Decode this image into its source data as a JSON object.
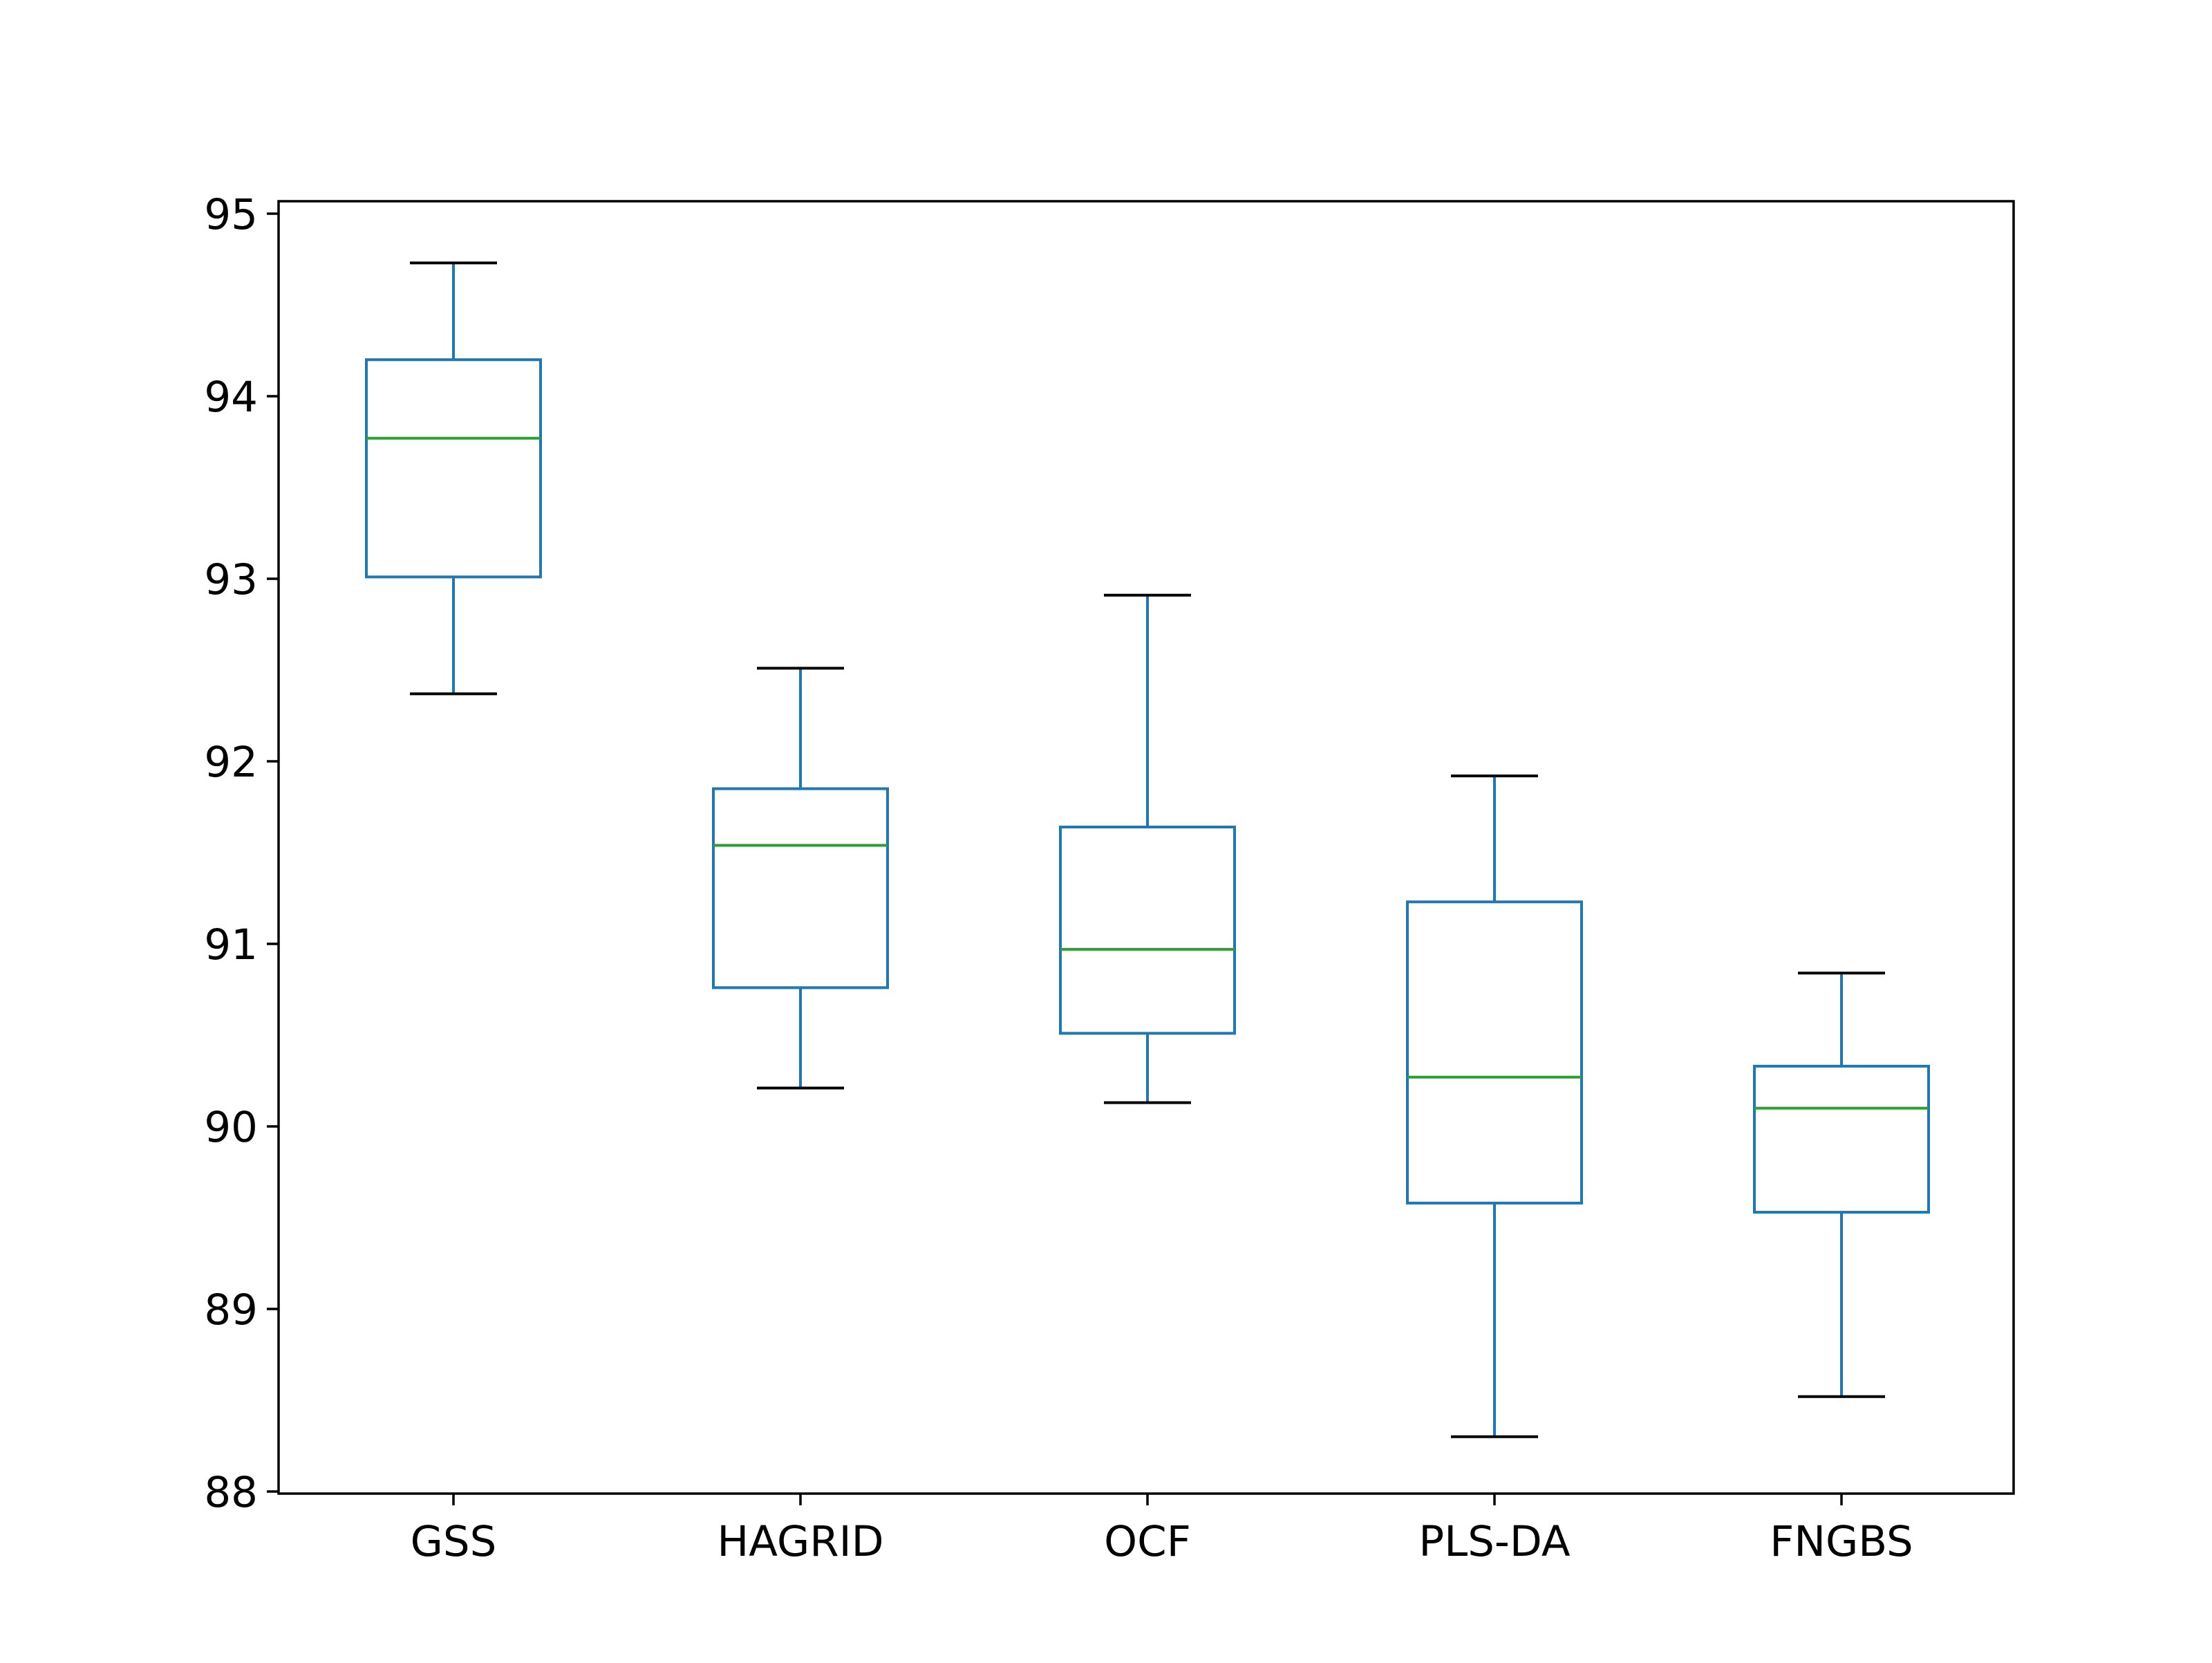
{
  "chart_data": {
    "type": "box",
    "title": "",
    "xlabel": "",
    "ylabel": "",
    "ylim": [
      88,
      95
    ],
    "yticks": [
      88,
      89,
      90,
      91,
      92,
      93,
      94,
      95
    ],
    "grid": false,
    "categories": [
      "GSS",
      "HAGRID",
      "OCF",
      "PLS-DA",
      "FNGBS"
    ],
    "boxes": [
      {
        "label": "GSS",
        "whisker_low": 92.37,
        "q1": 93.01,
        "median": 93.77,
        "q3": 94.2,
        "whisker_high": 94.73
      },
      {
        "label": "HAGRID",
        "whisker_low": 90.21,
        "q1": 90.76,
        "median": 91.54,
        "q3": 91.85,
        "whisker_high": 92.51
      },
      {
        "label": "OCF",
        "whisker_low": 90.13,
        "q1": 90.51,
        "median": 90.97,
        "q3": 91.64,
        "whisker_high": 92.91
      },
      {
        "label": "PLS-DA",
        "whisker_low": 88.3,
        "q1": 89.58,
        "median": 90.27,
        "q3": 91.23,
        "whisker_high": 91.92
      },
      {
        "label": "FNGBS",
        "whisker_low": 88.52,
        "q1": 89.53,
        "median": 90.1,
        "q3": 90.33,
        "whisker_high": 90.84
      }
    ],
    "colors": {
      "box": "#1f77b4",
      "median": "#2ca02c",
      "cap": "#000000",
      "axis": "#000000",
      "text": "#000000"
    }
  }
}
